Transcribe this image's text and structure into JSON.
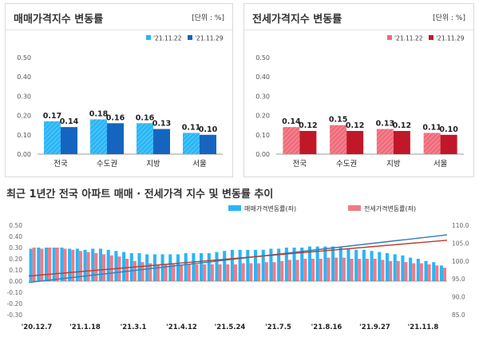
{
  "colors": {
    "sale_light": "#29b6f6",
    "sale_dark": "#1565c0",
    "rent_light": "#f06b7b",
    "rent_dark": "#c01828",
    "bottom_sale_bar": "#29b6f6",
    "bottom_rent_bar": "#ef7b86",
    "sale_index_line": "#2e7fb8",
    "rent_index_line": "#c0392b"
  },
  "panels": {
    "left": {
      "title": "매매가격지수 변동률",
      "unit": "[단위 : %]"
    },
    "right": {
      "title": "전세가격지수 변동률",
      "unit": "[단위 : %]"
    }
  },
  "bottom": {
    "title": "최근 1년간 전국 아파트 매매 · 전세가격 지수 및 변동률 추이"
  },
  "chart_data": [
    {
      "type": "bar",
      "title": "매매가격지수 변동률",
      "categories": [
        "전국",
        "수도권",
        "지방",
        "서울"
      ],
      "series": [
        {
          "name": "'21.11.22",
          "values": [
            0.17,
            0.18,
            0.16,
            0.11
          ]
        },
        {
          "name": "'21.11.29",
          "values": [
            0.14,
            0.16,
            0.13,
            0.1
          ]
        }
      ],
      "ylim": [
        0,
        0.5
      ],
      "yticks": [
        "0.00",
        "0.10",
        "0.20",
        "0.30",
        "0.40",
        "0.50"
      ],
      "grid": false,
      "legend": "top-right"
    },
    {
      "type": "bar",
      "title": "전세가격지수 변동률",
      "categories": [
        "전국",
        "수도권",
        "지방",
        "서울"
      ],
      "series": [
        {
          "name": "'21.11.22",
          "values": [
            0.14,
            0.15,
            0.13,
            0.11
          ]
        },
        {
          "name": "'21.11.29",
          "values": [
            0.12,
            0.12,
            0.12,
            0.1
          ]
        }
      ],
      "ylim": [
        0,
        0.5
      ],
      "yticks": [
        "0.00",
        "0.10",
        "0.20",
        "0.30",
        "0.40",
        "0.50"
      ],
      "grid": false,
      "legend": "top-right"
    },
    {
      "type": "bar",
      "title": "최근 1년간 전국 아파트 매매 · 전세가격 지수 및 변동률 추이",
      "x_tick_labels": [
        "'20.12.7",
        "'21.1.18",
        "'21.3.1",
        "'21.4.12",
        "'21.5.24",
        "'21.7.5",
        "'21.8.16",
        "'21.9.27",
        "'21.11.8"
      ],
      "ylim_left": [
        -0.3,
        0.5
      ],
      "yticks_left": [
        "0.50",
        "0.40",
        "0.30",
        "0.20",
        "0.10",
        "0.00",
        "-0.10",
        "-0.20",
        "-0.30"
      ],
      "ylim_right": [
        85.0,
        110.0
      ],
      "yticks_right": [
        "110.0",
        "105.0",
        "100.0",
        "95.0",
        "90.0",
        "85.0"
      ],
      "series": [
        {
          "name": "매매가격변동률(좌)",
          "axis": "left",
          "kind": "bar",
          "values": [
            0.29,
            0.3,
            0.3,
            0.3,
            0.3,
            0.29,
            0.29,
            0.28,
            0.29,
            0.29,
            0.28,
            0.27,
            0.26,
            0.25,
            0.25,
            0.24,
            0.24,
            0.24,
            0.24,
            0.24,
            0.25,
            0.25,
            0.25,
            0.25,
            0.26,
            0.27,
            0.28,
            0.28,
            0.28,
            0.28,
            0.28,
            0.29,
            0.29,
            0.3,
            0.3,
            0.3,
            0.31,
            0.31,
            0.31,
            0.31,
            0.3,
            0.29,
            0.28,
            0.28,
            0.27,
            0.26,
            0.25,
            0.24,
            0.23,
            0.21,
            0.2,
            0.18,
            0.17,
            0.14
          ]
        },
        {
          "name": "전세가격변동률(좌)",
          "axis": "left",
          "kind": "bar",
          "values": [
            0.3,
            0.29,
            0.3,
            0.3,
            0.29,
            0.28,
            0.27,
            0.26,
            0.25,
            0.24,
            0.23,
            0.22,
            0.2,
            0.18,
            0.17,
            0.16,
            0.15,
            0.15,
            0.15,
            0.15,
            0.15,
            0.15,
            0.15,
            0.15,
            0.15,
            0.15,
            0.15,
            0.16,
            0.16,
            0.16,
            0.17,
            0.17,
            0.18,
            0.19,
            0.19,
            0.2,
            0.2,
            0.2,
            0.21,
            0.21,
            0.21,
            0.2,
            0.2,
            0.2,
            0.2,
            0.19,
            0.18,
            0.18,
            0.17,
            0.16,
            0.16,
            0.15,
            0.14,
            0.12
          ]
        },
        {
          "name": "",
          "axis": "right",
          "kind": "line",
          "color": "sale_index_line",
          "start": 94.0,
          "end": 107.3
        },
        {
          "name": "",
          "axis": "right",
          "kind": "line",
          "color": "rent_index_line",
          "start": 95.8,
          "end": 105.8
        }
      ],
      "legend": "top-center"
    }
  ]
}
